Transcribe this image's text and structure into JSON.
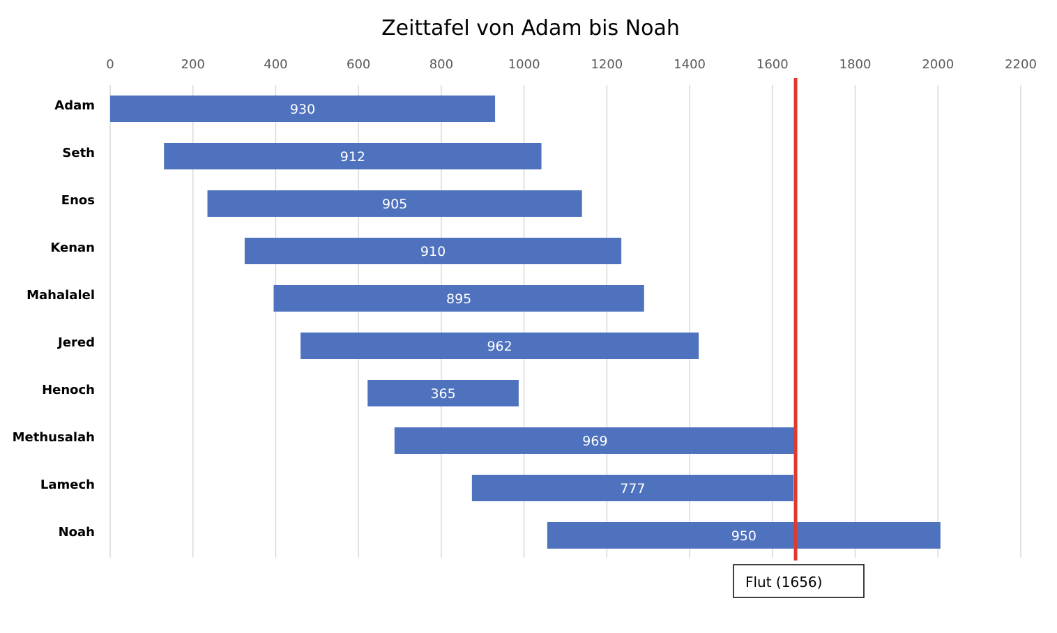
{
  "chart_data": {
    "type": "bar",
    "orientation": "horizontal",
    "stacked_range": true,
    "title": "Zeittafel von Adam bis Noah",
    "xlabel": "",
    "ylabel": "",
    "xlim": [
      0,
      2200
    ],
    "x_ticks": [
      0,
      200,
      400,
      600,
      800,
      1000,
      1200,
      1400,
      1600,
      1800,
      2000,
      2200
    ],
    "x_tick_labels": [
      "0",
      "200",
      "400",
      "600",
      "800",
      "1000",
      "1200",
      "1400",
      "1600",
      "1800",
      "2000",
      "2200"
    ],
    "x_axis_position": "top",
    "grid": true,
    "legend": "none",
    "bar_color": "#4E72BE",
    "categories": [
      "Adam",
      "Seth",
      "Enos",
      "Kenan",
      "Mahalalel",
      "Jered",
      "Henoch",
      "Methusalah",
      "Lamech",
      "Noah"
    ],
    "start": [
      0,
      130,
      235,
      325,
      395,
      460,
      622,
      687,
      874,
      1056
    ],
    "end": [
      930,
      1042,
      1140,
      1235,
      1290,
      1422,
      987,
      1656,
      1651,
      2006
    ],
    "data_labels": [
      "930",
      "912",
      "905",
      "910",
      "895",
      "962",
      "365",
      "969",
      "777",
      "950"
    ],
    "marker": {
      "value": 1656,
      "label": "Flut (1656)",
      "color": "#DD3B2E"
    }
  }
}
